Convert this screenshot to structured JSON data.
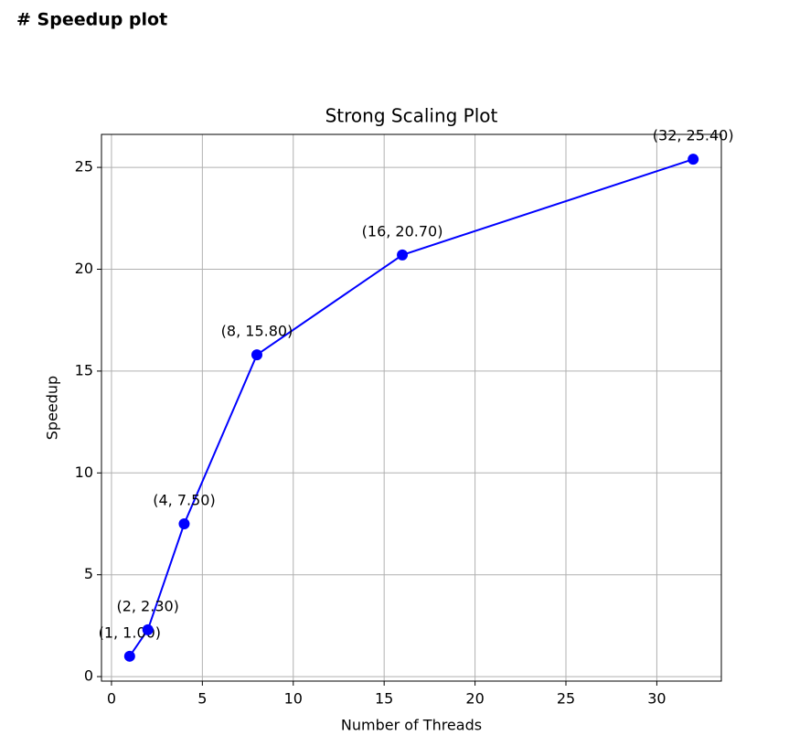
{
  "header": {
    "title": "# Speedup plot"
  },
  "chart_data": {
    "type": "line",
    "title": "Strong Scaling Plot",
    "x_label": "Number of Threads",
    "y_label": "Speedup",
    "x": [
      1,
      2,
      4,
      8,
      16,
      32
    ],
    "series": [
      {
        "color": "#0000ff",
        "values": [
          1.0,
          2.3,
          7.5,
          15.8,
          20.7,
          25.4
        ],
        "value_labels": [
          "(1, 1.00)",
          "(2, 2.30)",
          "(4, 7.50)",
          "(8, 15.80)",
          "(16, 20.70)",
          "(32, 25.40)"
        ]
      }
    ],
    "xlim": [
      -0.55,
      33.55
    ],
    "ylim": [
      -0.22,
      26.62
    ],
    "xticks": [
      0,
      5,
      10,
      15,
      20,
      25,
      30
    ],
    "yticks": [
      0,
      5,
      10,
      15,
      20,
      25
    ],
    "grid": true
  }
}
